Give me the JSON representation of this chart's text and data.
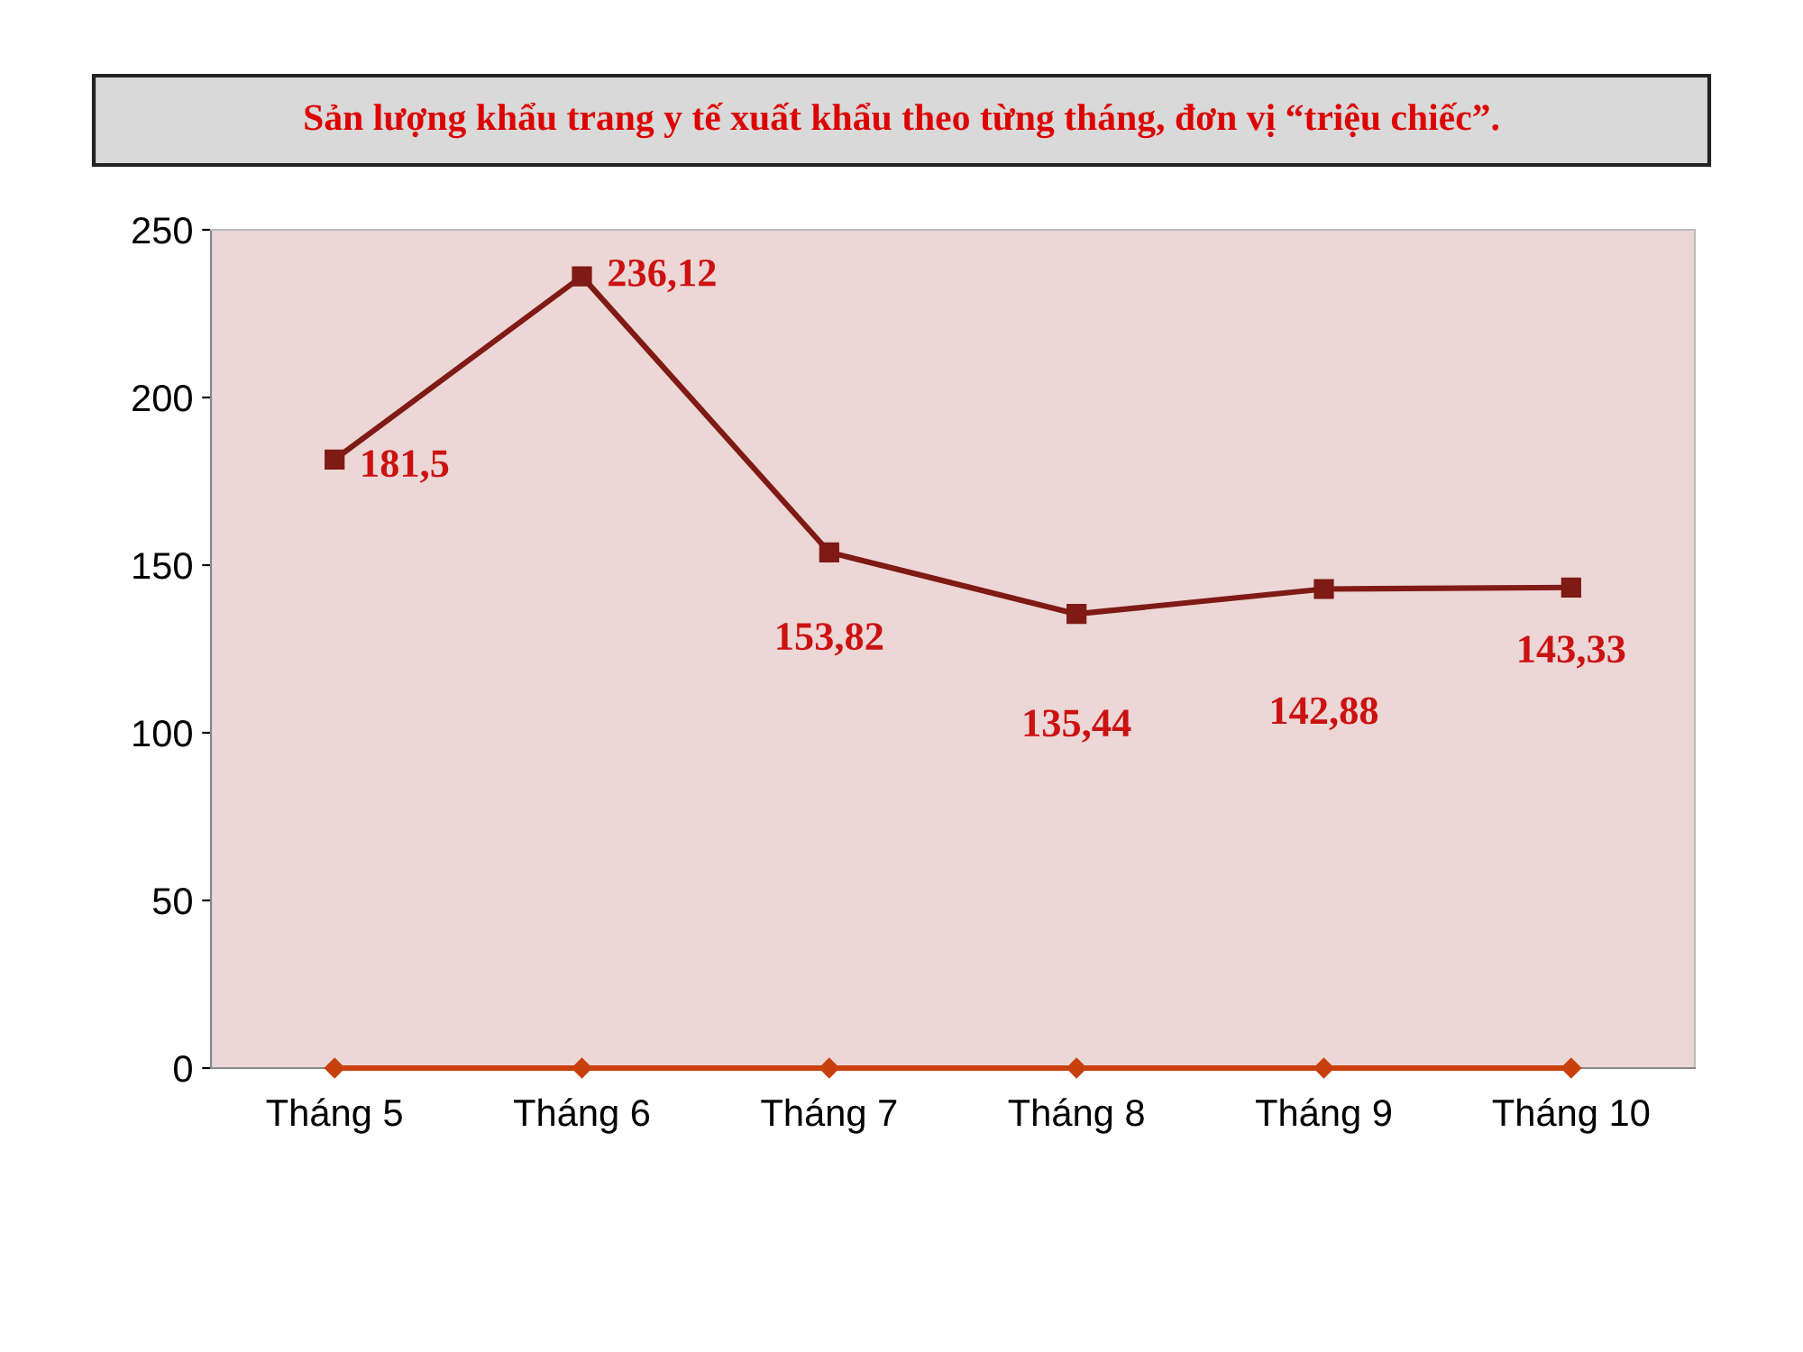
{
  "chart_data": {
    "type": "line",
    "title": "Sản lượng khẩu trang y tế xuất khẩu theo từng tháng, đơn vị “triệu chiếc”.",
    "categories": [
      "Tháng 5",
      "Tháng 6",
      "Tháng 7",
      "Tháng 8",
      "Tháng 9",
      "Tháng 10"
    ],
    "series": [
      {
        "color": "#7f1a14",
        "marker": "square",
        "values": [
          181.5,
          236.12,
          153.82,
          135.44,
          142.88,
          143.33
        ],
        "value_labels": [
          "181,5",
          "236,12",
          "153,82",
          "135,44",
          "142,88",
          "143,33"
        ]
      },
      {
        "color": "#c8400c",
        "marker": "diamond",
        "values": [
          0,
          0,
          0,
          0,
          0,
          0
        ]
      }
    ],
    "ylim": [
      0,
      250
    ],
    "yticks": [
      0,
      50,
      100,
      150,
      200,
      250
    ],
    "grid": false,
    "legend": false
  }
}
